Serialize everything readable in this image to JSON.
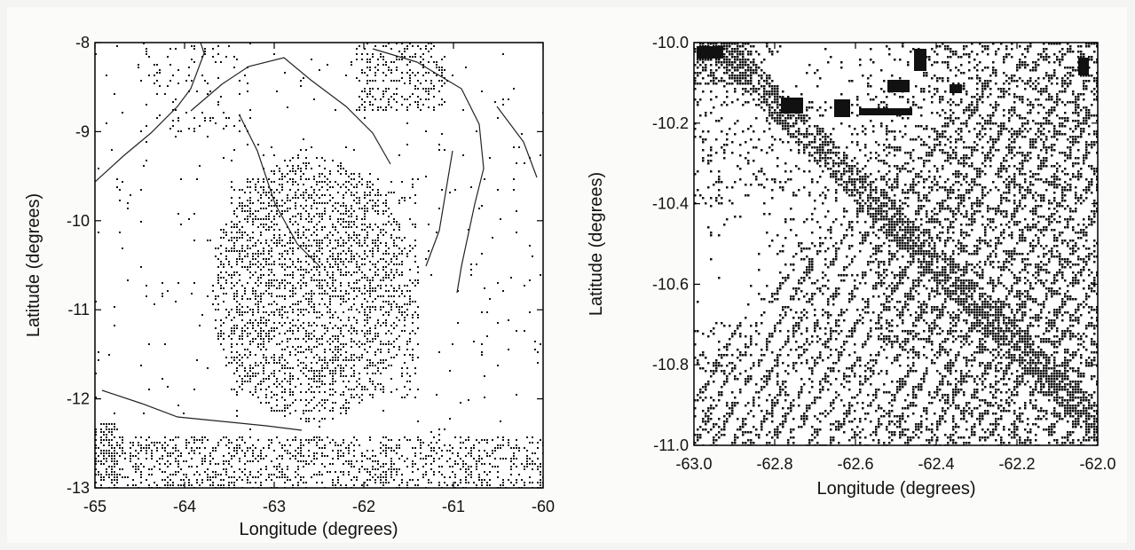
{
  "figure": {
    "panels": [
      {
        "id": "left",
        "xlabel": "Longitude (degrees)",
        "ylabel": "Latitude (degrees)",
        "xlim": [
          -65,
          -60
        ],
        "ylim": [
          -13,
          -8
        ],
        "xticks": [
          {
            "value": -65,
            "label": "-65"
          },
          {
            "value": -64,
            "label": "-64"
          },
          {
            "value": -63,
            "label": "-63"
          },
          {
            "value": -62,
            "label": "-62"
          },
          {
            "value": -61,
            "label": "-61"
          },
          {
            "value": -60,
            "label": "-60"
          }
        ],
        "yticks": [
          {
            "value": -8,
            "label": "-8"
          },
          {
            "value": -9,
            "label": "-9"
          },
          {
            "value": -10,
            "label": "-10"
          },
          {
            "value": -11,
            "label": "-11"
          },
          {
            "value": -12,
            "label": "-12"
          },
          {
            "value": -13,
            "label": "-13"
          }
        ]
      },
      {
        "id": "right",
        "xlabel": "Longitude (degrees)",
        "ylabel": "Latitude (degrees)",
        "xlim": [
          -63.0,
          -62.0
        ],
        "ylim": [
          -11.0,
          -10.0
        ],
        "xticks": [
          {
            "value": -63.0,
            "label": "-63.0"
          },
          {
            "value": -62.8,
            "label": "-62.8"
          },
          {
            "value": -62.6,
            "label": "-62.6"
          },
          {
            "value": -62.4,
            "label": "-62.4"
          },
          {
            "value": -62.2,
            "label": "-62.2"
          },
          {
            "value": -62.0,
            "label": "-62.0"
          }
        ],
        "yticks": [
          {
            "value": -10.0,
            "label": "-10.0"
          },
          {
            "value": -10.2,
            "label": "-10.2"
          },
          {
            "value": -10.4,
            "label": "-10.4"
          },
          {
            "value": -10.6,
            "label": "-10.6"
          },
          {
            "value": -10.8,
            "label": "-10.8"
          },
          {
            "value": -11.0,
            "label": "-11.0"
          }
        ]
      }
    ]
  },
  "colors": {
    "background": "#fbfbfa",
    "ink": "#000000",
    "deforested": "#1a1a1a",
    "river": "#222222"
  }
}
